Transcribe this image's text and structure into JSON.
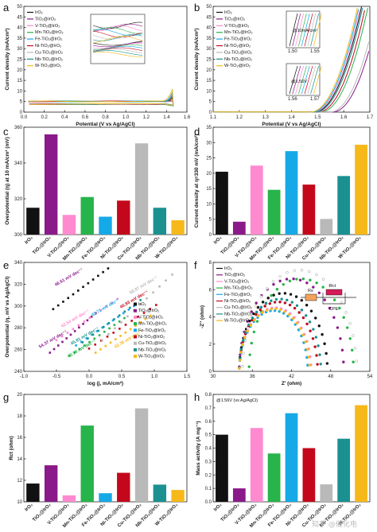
{
  "colors": [
    "#111111",
    "#8a1a8a",
    "#ff8ad0",
    "#27b44a",
    "#16a9e8",
    "#c4081b",
    "#b9b9b9",
    "#1a9190",
    "#f7b81a"
  ],
  "categories": [
    "IrO2",
    "TiO2@IrO2",
    "V-TiO2@IrO2",
    "Mn-TiO2@IrO2",
    "Fe-TiO2@IrO2",
    "Ni-TiO2@IrO2",
    "Cu-TiO2@IrO2",
    "Nb-TiO2@IrO2",
    "W-TiO2@IrO2"
  ],
  "legend_labels": [
    "IrO₂",
    "TiO₂@IrO₂",
    "V-TiO₂@IrO₂",
    "Mn-TiO₂@IrO₂",
    "Fe-TiO₂@IrO₂",
    "Ni-TiO₂@IrO₂",
    "Cu-TiO₂@IrO₂",
    "Nb-TiO₂@IrO₂",
    "W-TiO₂@IrO₂"
  ],
  "panel_letters": [
    "a",
    "b",
    "c",
    "d",
    "e",
    "f",
    "g",
    "h"
  ],
  "watermark": "知乎 @催化电",
  "chart_data": [
    {
      "id": "a",
      "type": "line",
      "xlabel": "Potential (V vs Ag/AgCl)",
      "ylabel": "Current density (mA/cm²)",
      "xlim": [
        -0.1,
        1.7
      ],
      "ylim": [
        -5,
        50
      ],
      "xticks": [
        "0.0",
        "0.2",
        "0.4",
        "0.6",
        "0.8",
        "1.0",
        "1.2",
        "1.4",
        "1.6"
      ],
      "yticks": [
        "0",
        "5",
        "10",
        "15",
        "20",
        "25",
        "30",
        "35",
        "40",
        "45",
        "50"
      ]
    },
    {
      "id": "b",
      "type": "line",
      "xlabel": "Potential (V vs Ag/AgCl)",
      "ylabel": "Current density (mA/cm²)",
      "xlim": [
        1.1,
        1.7
      ],
      "ylim": [
        0,
        50
      ],
      "xticks": [
        "1.1",
        "1.2",
        "1.3",
        "1.4",
        "1.5",
        "1.6",
        "1.7"
      ],
      "yticks": [
        "0",
        "5",
        "10",
        "15",
        "20",
        "25",
        "30",
        "35",
        "40",
        "45",
        "50"
      ],
      "annotations": [
        "@10mA/cm²",
        "@1.56V"
      ],
      "inset_ticks": [
        "1.50",
        "1.55",
        "1.56",
        "1.57"
      ]
    },
    {
      "id": "c",
      "type": "bar",
      "ylabel": "Overpotential (η) at 10 mA/cm² (mV)",
      "ylim": [
        300,
        360
      ],
      "yticks": [
        "300",
        "320",
        "340",
        "360"
      ],
      "values": [
        315,
        356,
        311,
        321,
        310,
        319,
        351,
        315,
        308
      ]
    },
    {
      "id": "d",
      "type": "bar",
      "ylabel": "Current density at η=330 mV (mA/cm²)",
      "ylim": [
        0,
        35
      ],
      "yticks": [
        "0",
        "5",
        "10",
        "15",
        "20",
        "25",
        "30",
        "35"
      ],
      "values": [
        20.5,
        4.2,
        22.5,
        14.6,
        27.2,
        16.3,
        5.1,
        19.1,
        29.3
      ]
    },
    {
      "id": "e",
      "type": "scatter",
      "xlabel": "log (j, mA/cm²)",
      "ylabel": "Overpotential (η, mV vs Ag/AgCl)",
      "xlim": [
        -1.0,
        1.5
      ],
      "ylim": [
        240,
        345
      ],
      "xticks": [
        "-1.0",
        "-0.5",
        "0.0",
        "0.5",
        "1.0",
        "1.5"
      ],
      "yticks": [
        "240",
        "260",
        "280",
        "300",
        "320",
        "340"
      ],
      "tafel": [
        "46.61 mV dec⁻¹",
        "54.37 mV dec⁻¹",
        "42.54 mV dec⁻¹",
        "43.19 mV dec⁻¹",
        "42.71 mV dec⁻¹",
        "40.83 mV dec⁻¹",
        "58.87 mV dec⁻¹",
        "45.81 mV dec⁻¹",
        "42.36 mV dec⁻¹"
      ]
    },
    {
      "id": "f",
      "type": "scatter",
      "xlabel": "Z' (ohm)",
      "ylabel": "-Z'' (ohm)",
      "xlim": [
        30,
        54
      ],
      "ylim": [
        0,
        8
      ],
      "xticks": [
        "30",
        "36",
        "42",
        "48",
        "54"
      ],
      "yticks": [
        "0",
        "2",
        "4",
        "6",
        "8"
      ],
      "circuit": [
        "Rs",
        "Rct",
        "CPE"
      ]
    },
    {
      "id": "g",
      "type": "bar",
      "ylabel": "Rct (ohm)",
      "ylim": [
        10,
        20
      ],
      "yticks": [
        "10",
        "12",
        "14",
        "16",
        "18",
        "20"
      ],
      "values": [
        11.7,
        13.4,
        10.6,
        17.1,
        10.8,
        12.7,
        18.7,
        11.6,
        11.1
      ]
    },
    {
      "id": "h",
      "type": "bar",
      "ylabel": "Mass activity (A mg⁻¹)",
      "ylim": [
        0,
        0.8
      ],
      "yticks": [
        "0.0",
        "0.1",
        "0.2",
        "0.3",
        "0.4",
        "0.5",
        "0.6",
        "0.7",
        "0.8"
      ],
      "note": "@1.56V (vs Ag/AgCl)",
      "values": [
        0.5,
        0.1,
        0.55,
        0.36,
        0.66,
        0.4,
        0.13,
        0.47,
        0.72
      ]
    }
  ]
}
